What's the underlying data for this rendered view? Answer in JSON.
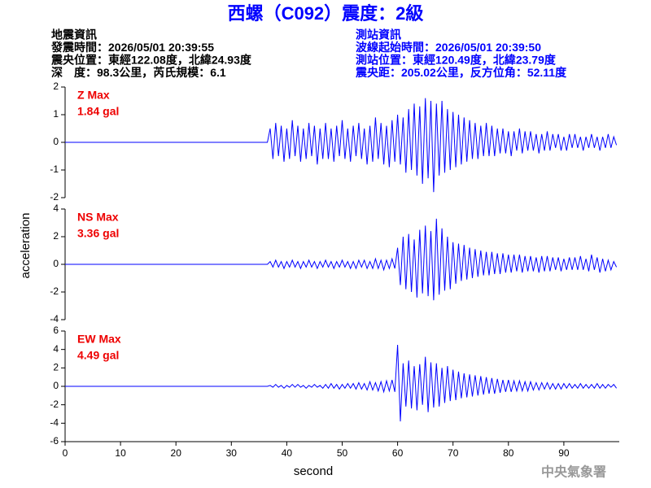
{
  "chart_data": {
    "type": "line",
    "title": "西螺（C092）震度：2級",
    "event_info": [
      "地震資訊",
      "發震時間：2026/05/01 20:39:55",
      "震央位置：東經122.08度，北緯24.93度",
      "深　度：98.3公里，芮氏規模：6.1"
    ],
    "station_info": [
      "測站資訊",
      "波線起始時間：2026/05/01 20:39:50",
      "測站位置：東經120.49度，北緯23.79度",
      "震央距：205.02公里，反方位角：52.11度"
    ],
    "xlabel": "second",
    "ylabel": "acceleration",
    "credit": "中央氣象署",
    "xlim": [
      0,
      100
    ],
    "xticks": [
      0,
      10,
      20,
      30,
      40,
      50,
      60,
      70,
      80,
      90
    ],
    "x": [
      0,
      36.5,
      37,
      37.5,
      38,
      38.5,
      39,
      39.5,
      40,
      40.5,
      41,
      41.5,
      42,
      42.5,
      43,
      43.5,
      44,
      44.5,
      45,
      45.5,
      46,
      46.5,
      47,
      47.5,
      48,
      48.5,
      49,
      49.5,
      50,
      50.5,
      51,
      51.5,
      52,
      52.5,
      53,
      53.5,
      54,
      54.5,
      55,
      55.5,
      56,
      56.5,
      57,
      57.5,
      58,
      58.5,
      59,
      59.5,
      60,
      60.5,
      61,
      61.5,
      62,
      62.5,
      63,
      63.5,
      64,
      64.5,
      65,
      65.5,
      66,
      66.5,
      67,
      67.5,
      68,
      68.5,
      69,
      69.5,
      70,
      70.5,
      71,
      71.5,
      72,
      72.5,
      73,
      73.5,
      74,
      74.5,
      75,
      75.5,
      76,
      76.5,
      77,
      77.5,
      78,
      78.5,
      79,
      79.5,
      80,
      80.5,
      81,
      81.5,
      82,
      82.5,
      83,
      83.5,
      84,
      84.5,
      85,
      85.5,
      86,
      86.5,
      87,
      87.5,
      88,
      88.5,
      89,
      89.5,
      90,
      90.5,
      91,
      91.5,
      92,
      92.5,
      93,
      93.5,
      94,
      94.5,
      95,
      95.5,
      96,
      96.5,
      97,
      97.5,
      98,
      98.5,
      99,
      99.5
    ],
    "panels": [
      {
        "label": "Z Max",
        "peak": "1.84 gal",
        "color": "#0000ff",
        "ylim": [
          -2,
          2
        ],
        "yticks": [
          -2,
          -1,
          0,
          1,
          2
        ],
        "values": [
          0,
          0,
          0.5,
          -0.6,
          0.7,
          -0.5,
          0.6,
          -0.7,
          0.5,
          -0.6,
          0.8,
          -0.5,
          0.6,
          -0.7,
          0.5,
          -0.6,
          0.7,
          -0.5,
          0.6,
          -0.8,
          0.5,
          -0.6,
          0.7,
          -0.6,
          0.5,
          -0.7,
          0.6,
          -0.5,
          0.8,
          -0.6,
          0.5,
          -0.7,
          0.6,
          -0.5,
          0.7,
          -0.6,
          0.5,
          -0.8,
          0.6,
          -0.7,
          0.9,
          -0.6,
          0.7,
          -0.8,
          0.6,
          -0.9,
          0.8,
          -0.7,
          1.0,
          -0.8,
          0.9,
          -1.1,
          1.2,
          -1.0,
          1.4,
          -1.2,
          1.3,
          -1.5,
          1.6,
          -1.3,
          1.5,
          -1.8,
          1.4,
          -1.2,
          1.5,
          -1.1,
          1.2,
          -1.0,
          1.1,
          -0.9,
          1.0,
          -0.8,
          0.9,
          -0.7,
          0.8,
          -0.6,
          0.7,
          -0.6,
          0.6,
          -0.5,
          0.7,
          -0.5,
          0.6,
          -0.5,
          0.5,
          -0.4,
          0.5,
          -0.4,
          0.4,
          -0.5,
          0.4,
          -0.3,
          0.5,
          -0.4,
          0.4,
          -0.3,
          0.4,
          -0.3,
          0.3,
          -0.4,
          0.3,
          -0.3,
          0.4,
          -0.3,
          0.3,
          -0.2,
          0.3,
          -0.3,
          0.2,
          -0.3,
          0.3,
          -0.2,
          0.3,
          -0.2,
          0.2,
          -0.3,
          0.2,
          -0.2,
          0.3,
          -0.2,
          0.2,
          -0.3,
          0.2,
          -0.2,
          0.3,
          -0.2,
          0.2,
          -0.1
        ]
      },
      {
        "label": "NS Max",
        "peak": "3.36 gal",
        "color": "#0000ff",
        "ylim": [
          -4,
          4
        ],
        "yticks": [
          -4,
          -2,
          0,
          2,
          4
        ],
        "values": [
          0,
          0,
          0.2,
          -0.2,
          0.3,
          -0.2,
          0.2,
          -0.3,
          0.2,
          -0.2,
          0.3,
          -0.2,
          0.2,
          -0.3,
          0.2,
          -0.2,
          0.3,
          -0.2,
          0.2,
          -0.3,
          0.2,
          -0.2,
          0.3,
          -0.2,
          0.2,
          -0.3,
          0.2,
          -0.2,
          0.3,
          -0.2,
          0.2,
          -0.3,
          0.2,
          -0.3,
          0.3,
          -0.2,
          0.3,
          -0.3,
          0.2,
          -0.3,
          0.4,
          -0.3,
          0.3,
          -0.4,
          0.3,
          -0.3,
          0.4,
          -0.3,
          1.2,
          -1.5,
          2.0,
          -1.8,
          2.2,
          -2.0,
          1.8,
          -2.4,
          2.5,
          -2.1,
          2.8,
          -2.3,
          2.4,
          -2.6,
          3.3,
          -2.2,
          2.6,
          -1.9,
          2.0,
          -1.8,
          1.6,
          -1.4,
          1.5,
          -1.2,
          1.4,
          -1.1,
          1.2,
          -1.0,
          1.1,
          -0.9,
          1.0,
          -0.8,
          0.9,
          -0.8,
          0.9,
          -0.7,
          0.8,
          -0.7,
          0.8,
          -0.6,
          0.7,
          -0.6,
          0.7,
          -0.5,
          0.7,
          -0.6,
          0.6,
          -0.5,
          0.6,
          -0.5,
          0.5,
          -0.6,
          0.6,
          -0.5,
          0.6,
          -0.5,
          0.5,
          -0.4,
          0.5,
          -0.5,
          0.4,
          -0.4,
          0.5,
          -0.4,
          0.5,
          -0.4,
          0.6,
          -0.4,
          0.4,
          -0.5,
          0.7,
          -0.4,
          0.5,
          -0.6,
          0.4,
          -0.5,
          0.3,
          -0.4,
          0.2,
          -0.2
        ]
      },
      {
        "label": "EW Max",
        "peak": "4.49 gal",
        "color": "#0000ff",
        "ylim": [
          -6,
          6
        ],
        "yticks": [
          -6,
          -4,
          -2,
          0,
          2,
          4,
          6
        ],
        "values": [
          0,
          0,
          0.1,
          -0.1,
          0.2,
          -0.1,
          0.1,
          -0.2,
          0.1,
          -0.1,
          0.2,
          -0.1,
          0.2,
          -0.1,
          0.1,
          -0.2,
          0.1,
          -0.1,
          0.2,
          -0.1,
          0.1,
          -0.2,
          0.2,
          -0.2,
          0.3,
          -0.2,
          0.2,
          -0.3,
          0.2,
          -0.2,
          0.3,
          -0.2,
          0.3,
          -0.3,
          0.4,
          -0.3,
          0.3,
          -0.4,
          0.5,
          -0.4,
          0.4,
          -0.5,
          0.5,
          -0.6,
          0.6,
          -0.5,
          0.7,
          -0.6,
          4.5,
          -3.8,
          2.5,
          -2.2,
          2.8,
          -2.4,
          2.2,
          -2.6,
          2.4,
          -2.0,
          3.2,
          -2.8,
          2.6,
          -2.3,
          2.5,
          -2.2,
          2.0,
          -1.8,
          2.2,
          -1.6,
          1.8,
          -1.5,
          1.6,
          -1.3,
          1.4,
          -1.2,
          1.3,
          -1.1,
          1.2,
          -1.0,
          1.1,
          -0.9,
          1.0,
          -0.8,
          0.9,
          -0.8,
          0.8,
          -0.7,
          0.7,
          -0.6,
          0.7,
          -0.6,
          0.6,
          -0.5,
          0.6,
          -0.5,
          0.5,
          -0.5,
          0.5,
          -0.4,
          0.4,
          -0.4,
          0.4,
          -0.3,
          0.4,
          -0.3,
          0.3,
          -0.3,
          0.3,
          -0.3,
          0.3,
          -0.2,
          0.3,
          -0.2,
          0.2,
          -0.2,
          0.3,
          -0.2,
          0.2,
          -0.2,
          0.2,
          -0.2,
          0.3,
          -0.2,
          0.2,
          -0.2,
          0.2,
          -0.1,
          0.2,
          -0.2
        ]
      }
    ]
  }
}
